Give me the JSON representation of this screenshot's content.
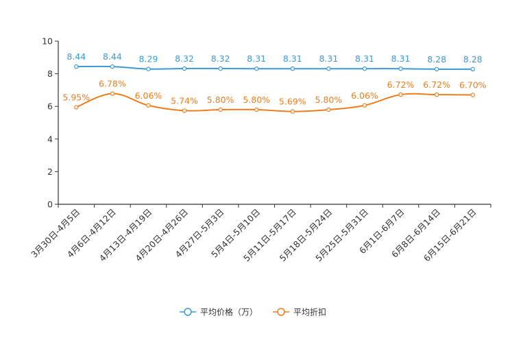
{
  "chart_data": {
    "type": "line",
    "title": "",
    "xlabel": "",
    "ylabel": "",
    "ylim": [
      0,
      10
    ],
    "yticks": [
      0,
      2,
      4,
      6,
      8,
      10
    ],
    "grid": false,
    "legend_position": "bottom-center",
    "categories": [
      "3月30日-4月5日",
      "4月6日-4月12日",
      "4月13日-4月19日",
      "4月20日-4月26日",
      "4月27日-5月3日",
      "5月4日-5月10日",
      "5月11日-5月17日",
      "5月18日-5月24日",
      "5月25日-5月31日",
      "6月1日-6月7日",
      "6月8日-6月14日",
      "6月15日-6月21日"
    ],
    "series": [
      {
        "name": "平均价格（万）",
        "color": "#3a9ad9",
        "values": [
          8.44,
          8.44,
          8.29,
          8.32,
          8.32,
          8.31,
          8.31,
          8.31,
          8.31,
          8.31,
          8.28,
          8.28
        ],
        "labels": [
          "8.44",
          "8.44",
          "8.29",
          "8.32",
          "8.32",
          "8.31",
          "8.31",
          "8.31",
          "8.31",
          "8.31",
          "8.28",
          "8.28"
        ]
      },
      {
        "name": "平均折扣",
        "color": "#f07c1c",
        "values": [
          5.95,
          6.78,
          6.06,
          5.74,
          5.8,
          5.8,
          5.69,
          5.8,
          6.06,
          6.72,
          6.72,
          6.7
        ],
        "labels": [
          "5.95%",
          "6.78%",
          "6.06%",
          "5.74%",
          "5.80%",
          "5.80%",
          "5.69%",
          "5.80%",
          "6.06%",
          "6.72%",
          "6.72%",
          "6.70%"
        ]
      }
    ]
  }
}
